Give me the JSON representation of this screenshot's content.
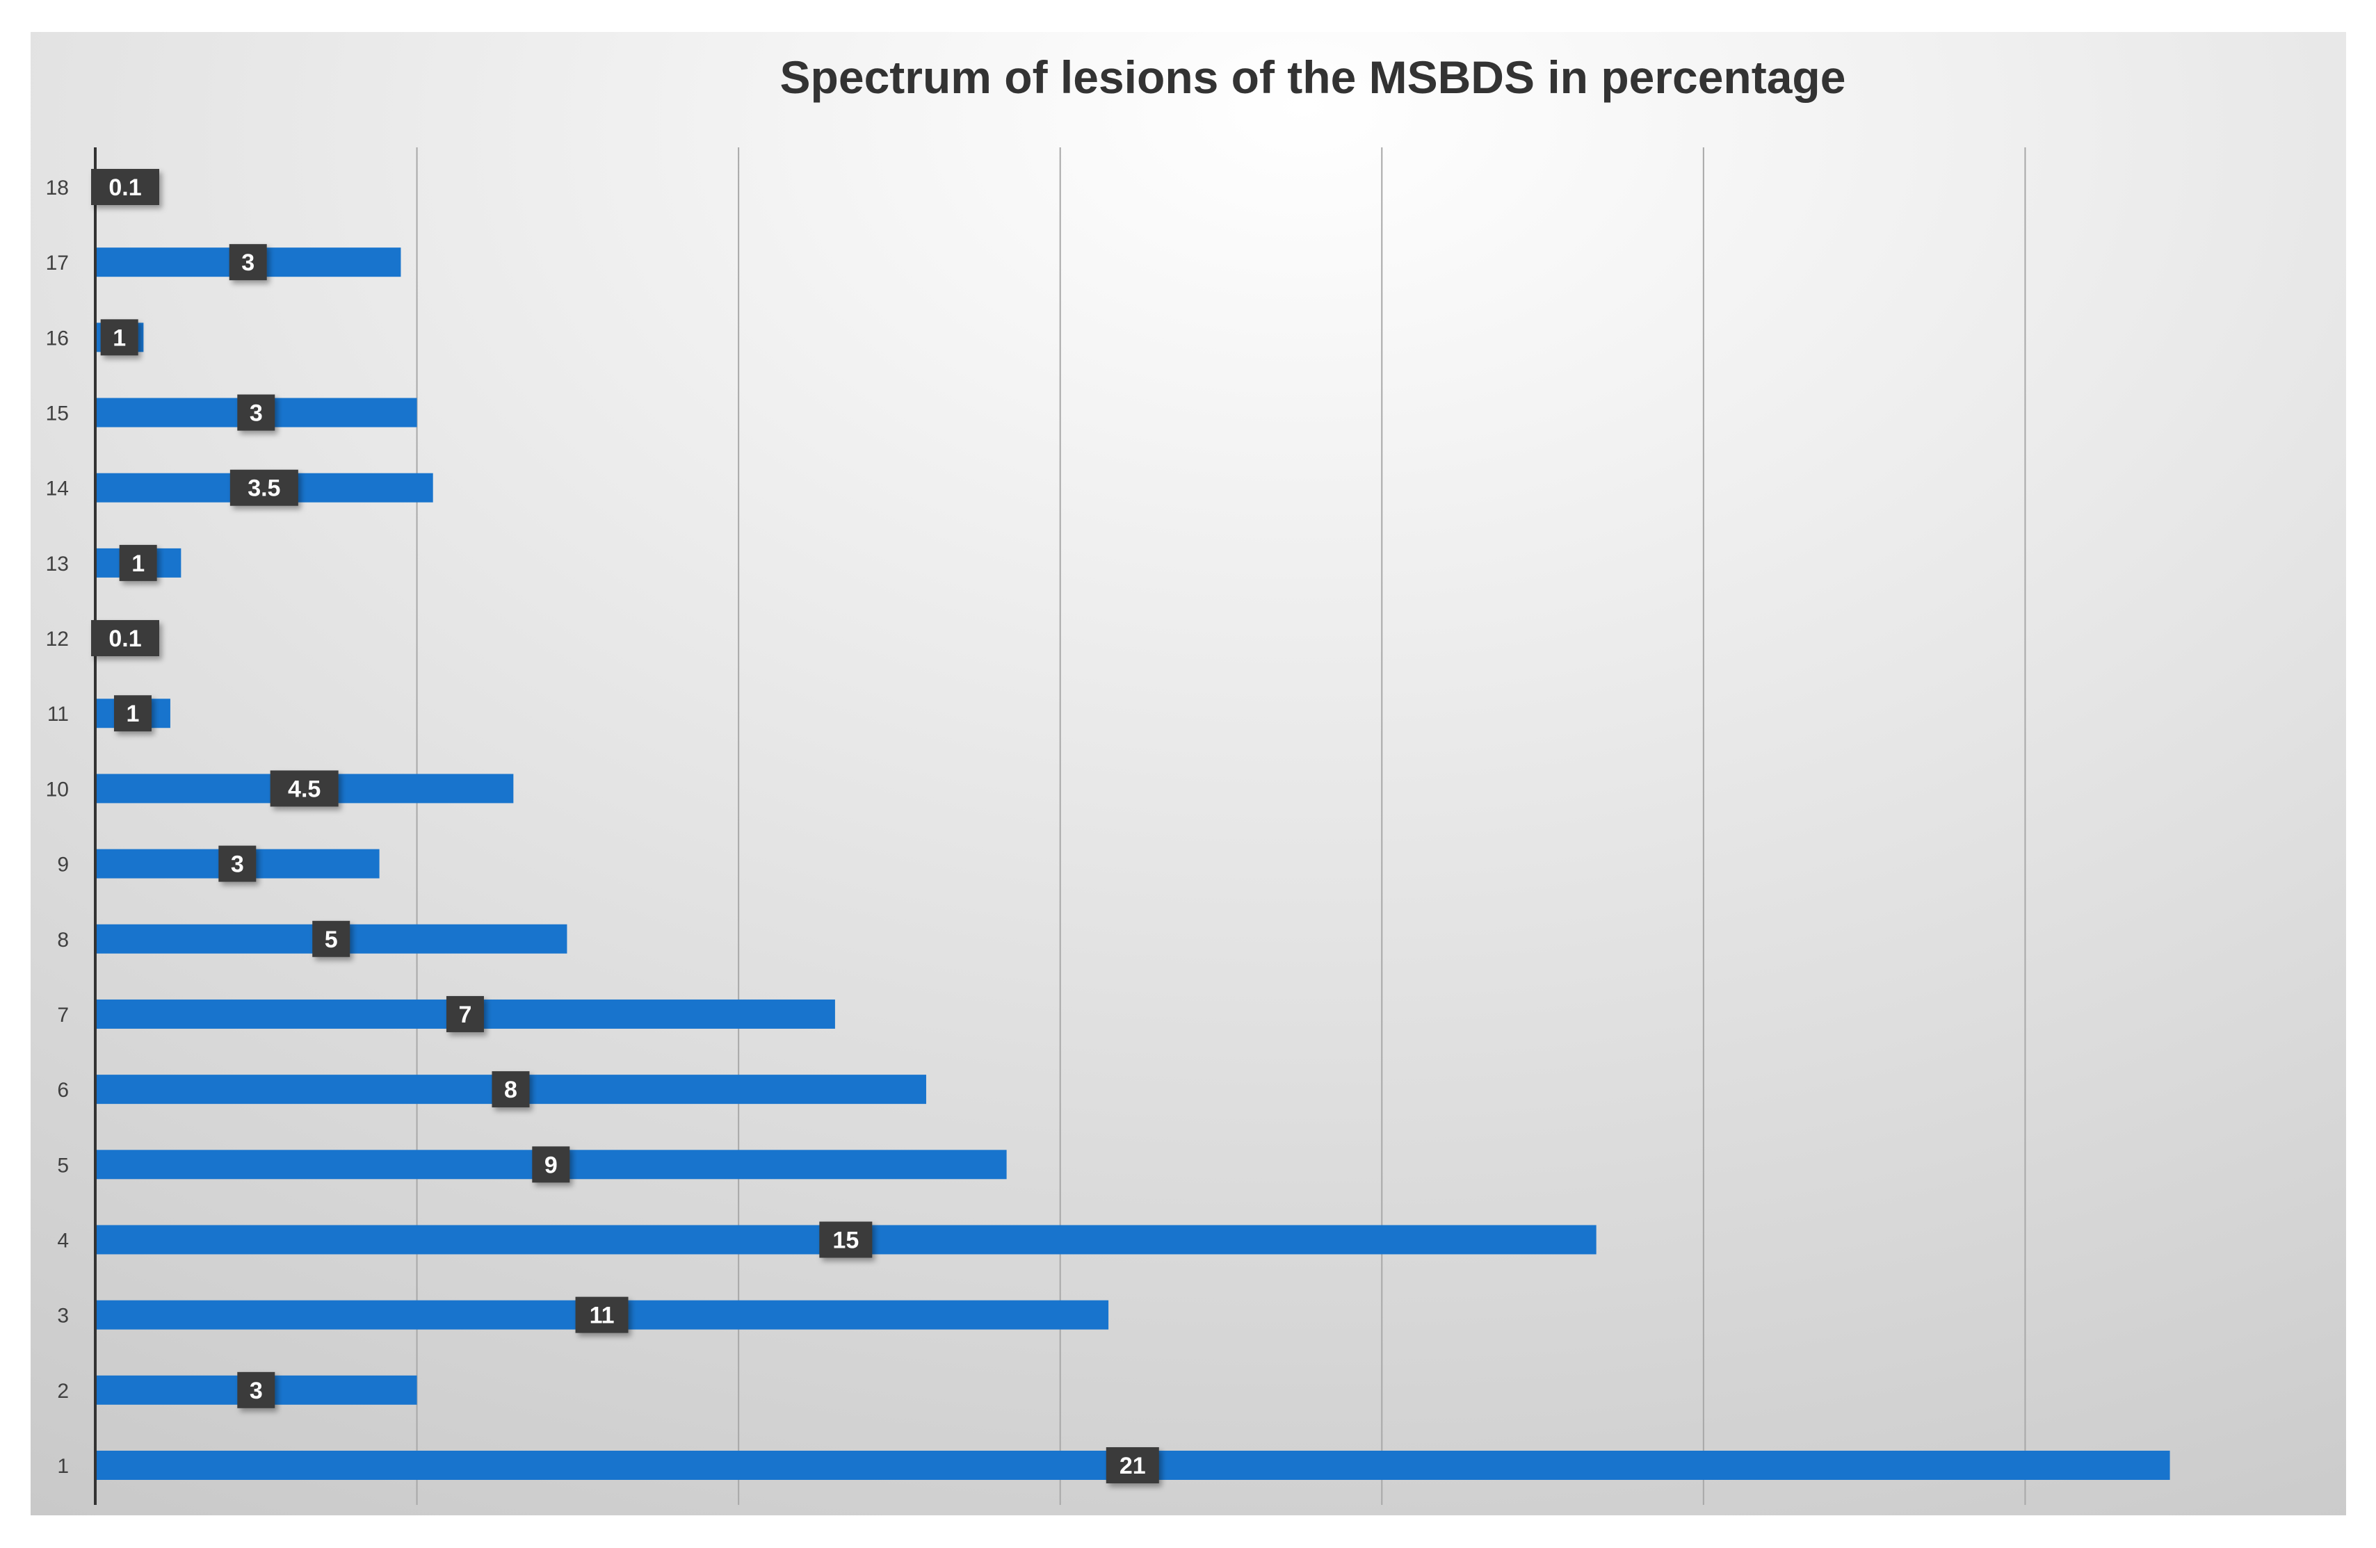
{
  "chart_data": {
    "type": "bar",
    "orientation": "horizontal",
    "title": "Spectrum of lesions of the MSBDS in percentage",
    "xlabel": "",
    "ylabel": "",
    "categories": [
      "1",
      "2",
      "3",
      "4",
      "5",
      "6",
      "7",
      "8",
      "9",
      "10",
      "11",
      "12",
      "13",
      "14",
      "15",
      "16",
      "17",
      "18"
    ],
    "values": [
      21,
      3,
      11,
      15,
      9,
      8,
      7,
      5,
      3,
      4.5,
      1,
      0.1,
      1,
      3.5,
      3,
      1,
      3,
      0.1
    ],
    "bar_lengths": [
      19.35,
      3.0,
      9.45,
      14.0,
      8.5,
      7.75,
      6.9,
      4.4,
      2.65,
      3.9,
      0.7,
      0.05,
      0.8,
      3.15,
      3.0,
      0.45,
      2.85,
      0.05
    ],
    "data_labels": [
      "21",
      "3",
      "11",
      "15",
      "9",
      "8",
      "7",
      "5",
      "3",
      "4.5",
      "1",
      "0.1",
      "1",
      "3.5",
      "3",
      "1",
      "3",
      "0.1"
    ],
    "xlim": [
      0,
      21
    ],
    "x_gridline_step": 3,
    "grid": true,
    "legend": "none",
    "bar_color": "#1874CD",
    "label_box_color": "#3a3a3a",
    "background_gradient": [
      "#ffffff",
      "#c9c9c9"
    ]
  }
}
